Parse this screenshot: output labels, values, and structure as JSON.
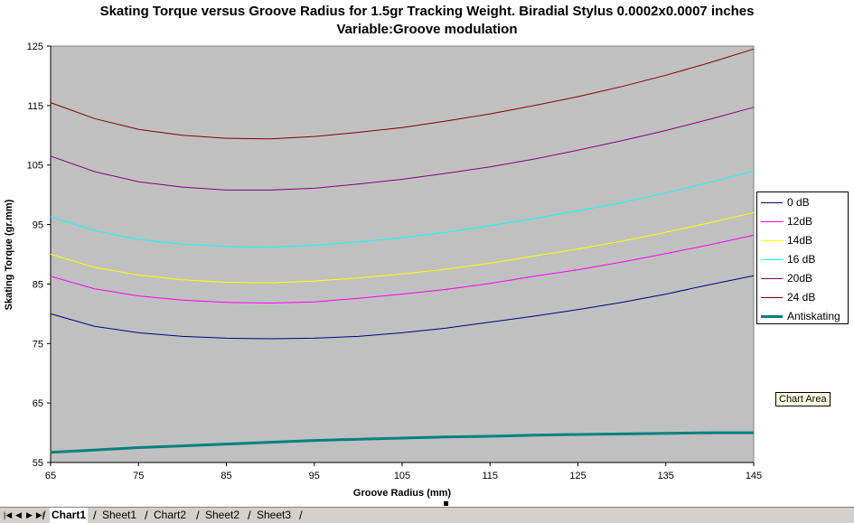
{
  "chart_data": {
    "type": "line",
    "title": "Skating Torque versus Groove Radius for 1.5gr Tracking Weight. Biradial Stylus 0.0002x0.0007 inches",
    "subtitle": "Variable:Groove modulation",
    "xlabel": "Groove Radius (mm)",
    "ylabel": "Skating Torque (gr.mm)",
    "xlim": [
      65,
      145
    ],
    "ylim": [
      55,
      125
    ],
    "x_ticks": [
      65,
      75,
      85,
      95,
      105,
      115,
      125,
      135,
      145
    ],
    "y_ticks": [
      55,
      65,
      75,
      85,
      95,
      105,
      115,
      125
    ],
    "plot_background": "#c0c0c0",
    "grid": false,
    "legend_position": "right",
    "x": [
      65,
      70,
      75,
      80,
      85,
      90,
      95,
      100,
      105,
      110,
      115,
      120,
      125,
      130,
      135,
      140,
      145
    ],
    "series": [
      {
        "name": "0 dB",
        "color": "#000080",
        "values": [
          80.0,
          77.9,
          76.8,
          76.2,
          75.9,
          75.8,
          75.9,
          76.2,
          76.8,
          77.6,
          78.6,
          79.6,
          80.7,
          81.9,
          83.3,
          84.9,
          86.4
        ]
      },
      {
        "name": "12dB",
        "color": "#ff00ff",
        "values": [
          86.3,
          84.2,
          83.0,
          82.3,
          81.9,
          81.8,
          82.0,
          82.6,
          83.3,
          84.1,
          85.1,
          86.3,
          87.4,
          88.7,
          90.1,
          91.6,
          93.2
        ]
      },
      {
        "name": "14dB",
        "color": "#ffff00",
        "values": [
          90.0,
          87.8,
          86.5,
          85.7,
          85.3,
          85.2,
          85.5,
          86.0,
          86.7,
          87.5,
          88.5,
          89.7,
          90.9,
          92.2,
          93.7,
          95.3,
          97.0
        ]
      },
      {
        "name": "16 dB",
        "color": "#00ffff",
        "values": [
          96.3,
          94.0,
          92.5,
          91.7,
          91.3,
          91.2,
          91.5,
          92.1,
          92.8,
          93.7,
          94.8,
          96.0,
          97.3,
          98.7,
          100.3,
          102.1,
          104.0
        ]
      },
      {
        "name": "20dB",
        "color": "#800080",
        "values": [
          106.5,
          103.9,
          102.2,
          101.3,
          100.8,
          100.8,
          101.1,
          101.8,
          102.6,
          103.6,
          104.7,
          106.0,
          107.5,
          109.1,
          110.8,
          112.7,
          114.7
        ]
      },
      {
        "name": "24 dB",
        "color": "#800000",
        "values": [
          115.5,
          112.8,
          111.0,
          110.0,
          109.5,
          109.4,
          109.8,
          110.5,
          111.3,
          112.4,
          113.6,
          115.0,
          116.5,
          118.2,
          120.1,
          122.2,
          124.5
        ]
      },
      {
        "name": "Antiskating",
        "color": "#008080",
        "values": [
          56.7,
          57.1,
          57.5,
          57.8,
          58.1,
          58.4,
          58.7,
          58.9,
          59.1,
          59.3,
          59.4,
          59.6,
          59.7,
          59.8,
          59.9,
          60.0,
          60.0
        ]
      }
    ]
  },
  "tooltip": {
    "text": "Chart Area"
  },
  "tab_bar": {
    "nav_buttons": [
      {
        "name": "first",
        "glyph": "|◀"
      },
      {
        "name": "prev",
        "glyph": "◀"
      },
      {
        "name": "next",
        "glyph": "▶"
      },
      {
        "name": "last",
        "glyph": "▶|"
      }
    ],
    "tabs": [
      {
        "label": "Chart1",
        "active": true
      },
      {
        "label": "Sheet1",
        "active": false
      },
      {
        "label": "Chart2",
        "active": false
      },
      {
        "label": "Sheet2",
        "active": false
      },
      {
        "label": "Sheet3",
        "active": false
      }
    ]
  }
}
